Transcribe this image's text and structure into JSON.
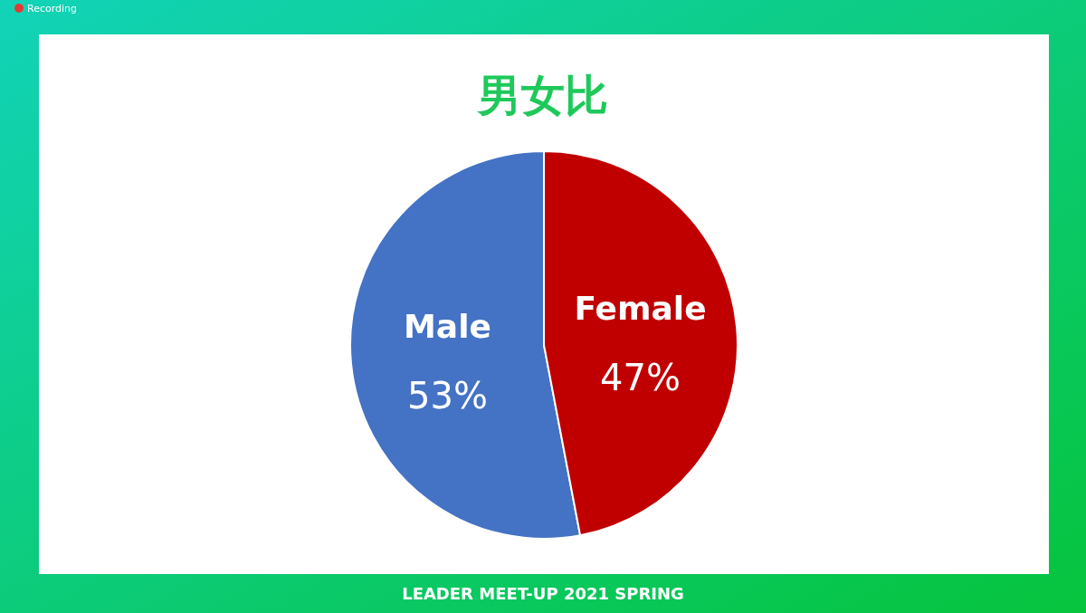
{
  "chart_data": {
    "type": "pie",
    "title": "男女比",
    "categories": [
      "Male",
      "Female"
    ],
    "values": [
      53,
      47
    ],
    "colors": [
      "#4472c4",
      "#c00000"
    ],
    "value_labels": [
      "53%",
      "47%"
    ],
    "annotations": [
      "Recording",
      "LEADER MEET-UP 2021 SPRING"
    ]
  }
}
